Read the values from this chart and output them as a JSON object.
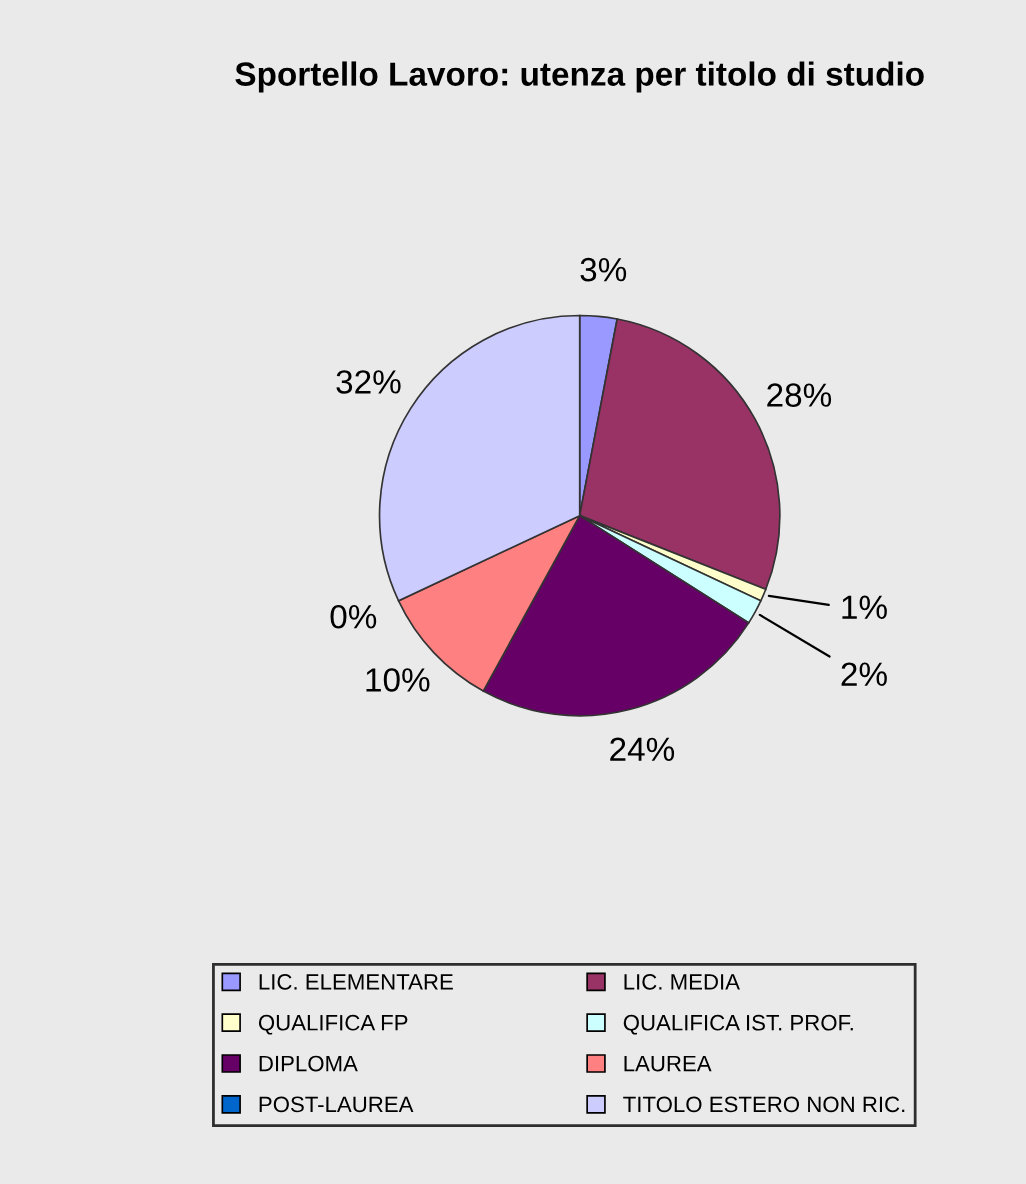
{
  "chart_data": {
    "type": "pie",
    "title": "Sportello Lavoro: utenza per titolo di studio",
    "categories": [
      "LIC. ELEMENTARE",
      "LIC. MEDIA",
      "QUALIFICA FP",
      "QUALIFICA IST. PROF.",
      "DIPLOMA",
      "LAUREA",
      "POST-LAUREA",
      "TITOLO ESTERO NON RIC."
    ],
    "values": [
      3,
      28,
      1,
      2,
      24,
      10,
      0,
      32
    ],
    "colors": [
      "#9999ff",
      "#993366",
      "#ffffcc",
      "#ccffff",
      "#660066",
      "#ff8080",
      "#0066cc",
      "#ccccff"
    ],
    "value_labels": [
      "3%",
      "28%",
      "1%",
      "2%",
      "24%",
      "10%",
      "0%",
      "32%"
    ],
    "legend": "bottom"
  }
}
